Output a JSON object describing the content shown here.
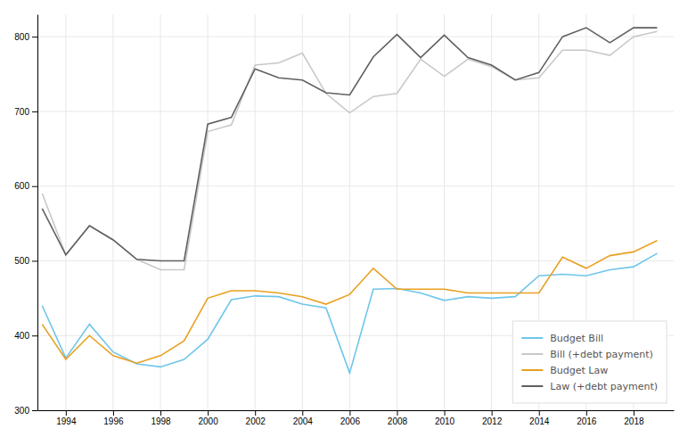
{
  "chart_data": {
    "type": "line",
    "x": [
      1993,
      1994,
      1995,
      1996,
      1997,
      1998,
      1999,
      2000,
      2001,
      2002,
      2003,
      2004,
      2005,
      2006,
      2007,
      2008,
      2009,
      2010,
      2011,
      2012,
      2013,
      2014,
      2015,
      2016,
      2017,
      2018,
      2019
    ],
    "series": [
      {
        "name": "Budget Bill",
        "color": "#6ec6ea",
        "values": [
          440,
          370,
          415,
          378,
          362,
          358,
          368,
          395,
          448,
          453,
          452,
          442,
          437,
          350,
          462,
          463,
          457,
          447,
          452,
          450,
          452,
          480,
          482,
          480,
          488,
          492,
          510
        ]
      },
      {
        "name": "Bill (+debt payment)",
        "color": "#c8c8c8",
        "values": [
          590,
          508,
          547,
          528,
          502,
          488,
          488,
          673,
          682,
          762,
          765,
          778,
          724,
          698,
          720,
          724,
          770,
          747,
          770,
          760,
          742,
          745,
          782,
          782,
          775,
          800,
          807
        ]
      },
      {
        "name": "Budget Law",
        "color": "#e8a020",
        "values": [
          415,
          368,
          400,
          373,
          363,
          373,
          393,
          450,
          460,
          460,
          457,
          452,
          442,
          455,
          490,
          462,
          462,
          462,
          457,
          457,
          457,
          457,
          505,
          490,
          507,
          512,
          527
        ]
      },
      {
        "name": "Law (+debt payment)",
        "color": "#606060",
        "values": [
          570,
          508,
          547,
          528,
          502,
          500,
          500,
          683,
          692,
          757,
          745,
          742,
          725,
          722,
          773,
          803,
          772,
          802,
          772,
          762,
          742,
          752,
          800,
          812,
          792,
          812,
          812
        ]
      }
    ],
    "xlim": [
      1992.8,
      2019.7
    ],
    "xticks": [
      1994,
      1996,
      1998,
      2000,
      2002,
      2004,
      2006,
      2008,
      2010,
      2012,
      2014,
      2016,
      2018
    ],
    "ylim": [
      300,
      830
    ],
    "yticks": [
      300,
      400,
      500,
      600,
      700,
      800
    ],
    "grid": true,
    "legend": "lower right"
  }
}
